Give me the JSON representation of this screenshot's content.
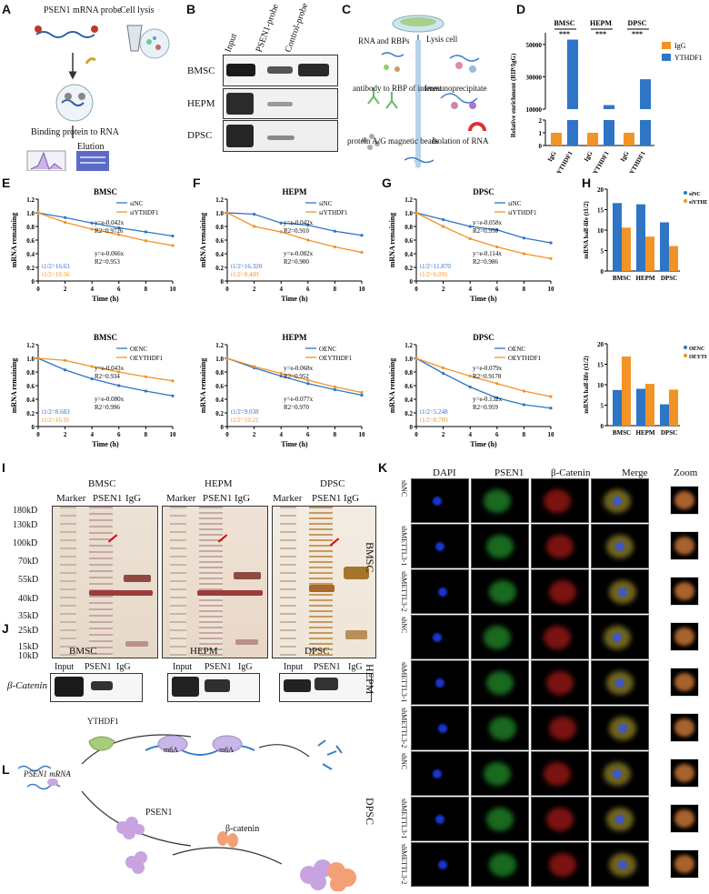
{
  "panels": {
    "A": {
      "label": "A",
      "probe": "PSEN1 mRNA probe",
      "lysis": "Cell lysis",
      "binding": "Binding protein to RNA",
      "elution": "Elution"
    },
    "B": {
      "label": "B",
      "cols": [
        "Input",
        "PSEN1-probe",
        "Control-probe"
      ],
      "rows": [
        "BMSC",
        "HEPM",
        "DPSC"
      ]
    },
    "C": {
      "label": "C",
      "steps": [
        "RNA and RBPs",
        "Lysis cell",
        "antibody to RBP of interest",
        "Immunoprecipitate",
        "protein A/G magnetic beads",
        "Isolation of RNA"
      ]
    },
    "D": {
      "label": "D",
      "ylabel": "Relative enrichment (RIP/IgG)",
      "groups": [
        "BMSC",
        "HEPM",
        "DPSC"
      ],
      "sig": "***",
      "legend": [
        "IgG",
        "YTHDF1"
      ],
      "xticks": [
        "IgG",
        "YTHDF1",
        "IgG",
        "YTHDF1",
        "IgG",
        "YTHDF1"
      ],
      "yticks": [
        "0",
        "1",
        "2",
        "10000",
        "30000",
        "50000"
      ]
    },
    "E": {
      "label": "E"
    },
    "F": {
      "label": "F"
    },
    "G": {
      "label": "G"
    },
    "H": {
      "label": "H"
    },
    "I": {
      "label": "I",
      "groups": [
        "BMSC",
        "HEPM",
        "DPSC"
      ],
      "lanes": [
        "Marker",
        "PSEN1",
        "IgG"
      ],
      "markers": [
        "180kD",
        "130kD",
        "100kD",
        "70kD",
        "55kD",
        "40kD",
        "35kD",
        "25kD",
        "15kD",
        "10kD"
      ]
    },
    "J": {
      "label": "J",
      "groups": [
        "BMSC",
        "HEPM",
        "DPSC"
      ],
      "lanes": [
        "Input",
        "PSEN1",
        "IgG"
      ],
      "row": "β-Catenin"
    },
    "K": {
      "label": "K",
      "cols": [
        "DAPI",
        "PSEN1",
        "β-Catenin",
        "Merge",
        "Zoom"
      ],
      "groups": [
        "BMSC",
        "HEPM",
        "DPSC"
      ],
      "rows": [
        "shNC",
        "shMETTL3-1",
        "shMETTL3-2"
      ]
    },
    "L": {
      "label": "L",
      "mrna": "PSEN1 mRNA",
      "ythdf1": "YTHDF1",
      "m6a": "m6A",
      "psen1": "PSEN1",
      "bcat": "β-catenin"
    }
  },
  "decay_axes": {
    "ylabel": "mRNA remaining",
    "xlabel": "Time (h)",
    "xticks": [
      "0",
      "2",
      "4",
      "6",
      "8",
      "10"
    ],
    "yticks": [
      "0",
      "0.2",
      "0.4",
      "0.6",
      "0.8",
      "1.0",
      "1.2"
    ]
  },
  "halflife_axes": {
    "ylabel": "mRNA half-life (t1/2)",
    "cats": [
      "BMSC",
      "HEPM",
      "DPSC"
    ]
  },
  "colors": {
    "blue": "#2e75c6",
    "orange": "#f29325"
  },
  "chart_data": [
    {
      "id": "D",
      "type": "bar",
      "title": "",
      "ylabel": "Relative enrichment (RIP/IgG)",
      "categories": [
        "BMSC",
        "HEPM",
        "DPSC"
      ],
      "series": [
        {
          "name": "IgG",
          "values": [
            1,
            1,
            1
          ]
        },
        {
          "name": "YTHDF1",
          "values": [
            53000,
            12500,
            28500
          ]
        }
      ]
    },
    {
      "id": "E1",
      "type": "line",
      "title": "BMSC",
      "xlabel": "Time (h)",
      "ylabel": "mRNA remaining",
      "x": [
        0,
        2,
        4,
        6,
        8,
        10
      ],
      "ylim": [
        0,
        1.2
      ],
      "series": [
        {
          "name": "siNC",
          "values": [
            1.0,
            0.93,
            0.85,
            0.78,
            0.72,
            0.66
          ]
        },
        {
          "name": "siYTHDF1",
          "values": [
            1.0,
            0.86,
            0.76,
            0.68,
            0.59,
            0.52
          ]
        }
      ],
      "annotations": [
        "y=e-0.042x",
        "R2=0.9726",
        "y=e-0.066x",
        "R2=0.953",
        "t1/2=16.63",
        "t1/2=10.56"
      ]
    },
    {
      "id": "F1",
      "type": "line",
      "title": "HEPM",
      "xlabel": "Time (h)",
      "ylabel": "mRNA remaining",
      "x": [
        0,
        2,
        4,
        6,
        8,
        10
      ],
      "ylim": [
        0,
        1.2
      ],
      "series": [
        {
          "name": "siNC",
          "values": [
            1.0,
            0.98,
            0.85,
            0.82,
            0.73,
            0.67
          ]
        },
        {
          "name": "siYTHDF1",
          "values": [
            1.0,
            0.8,
            0.72,
            0.6,
            0.5,
            0.42
          ]
        }
      ],
      "annotations": [
        "y=e-0.042x",
        "R2=0.910",
        "y=e-0.082x",
        "R2=0.900",
        "t1/2=16.320",
        "t1/2=8.409"
      ]
    },
    {
      "id": "G1",
      "type": "line",
      "title": "DPSC",
      "xlabel": "Time (h)",
      "ylabel": "mRNA remaining",
      "x": [
        0,
        2,
        4,
        6,
        8,
        10
      ],
      "ylim": [
        0,
        1.2
      ],
      "series": [
        {
          "name": "siNC",
          "values": [
            1.0,
            0.9,
            0.8,
            0.75,
            0.63,
            0.56
          ]
        },
        {
          "name": "siYTHDF1",
          "values": [
            1.0,
            0.8,
            0.62,
            0.5,
            0.4,
            0.33
          ]
        }
      ],
      "annotations": [
        "y=e-0.058x",
        "R2=0.950",
        "y=e-0.114x",
        "R2=0.986",
        "t1/2=11.870",
        "t1/2=6.091"
      ]
    },
    {
      "id": "H1",
      "type": "bar",
      "title": "",
      "ylabel": "mRNA half-life (t1/2)",
      "categories": [
        "BMSC",
        "HEPM",
        "DPSC"
      ],
      "ylim": [
        0,
        20
      ],
      "series": [
        {
          "name": "siNC",
          "values": [
            16.6,
            16.3,
            11.9
          ]
        },
        {
          "name": "siYTHDF1",
          "values": [
            10.6,
            8.4,
            6.1
          ]
        }
      ]
    },
    {
      "id": "E2",
      "type": "line",
      "title": "BMSC",
      "xlabel": "Time (h)",
      "ylabel": "mRNA remaining",
      "x": [
        0,
        2,
        4,
        6,
        8,
        10
      ],
      "ylim": [
        0,
        1.2
      ],
      "series": [
        {
          "name": "OENC",
          "values": [
            1.0,
            0.83,
            0.7,
            0.6,
            0.52,
            0.45
          ]
        },
        {
          "name": "OEYTHDF1",
          "values": [
            1.0,
            0.97,
            0.88,
            0.8,
            0.73,
            0.67
          ]
        }
      ],
      "annotations": [
        "y=e-0.043x",
        "R2=0.934",
        "y=e-0.080x",
        "R2=0.996",
        "t1/2=8.683",
        "t1/2=16.91"
      ]
    },
    {
      "id": "F2",
      "type": "line",
      "title": "HEPM",
      "xlabel": "Time (h)",
      "ylabel": "mRNA remaining",
      "x": [
        0,
        2,
        4,
        6,
        8,
        10
      ],
      "ylim": [
        0,
        1.2
      ],
      "series": [
        {
          "name": "OENC",
          "values": [
            1.0,
            0.86,
            0.74,
            0.63,
            0.54,
            0.46
          ]
        },
        {
          "name": "OEYTHDF1",
          "values": [
            1.0,
            0.88,
            0.78,
            0.68,
            0.58,
            0.5
          ]
        }
      ],
      "annotations": [
        "y=e-0.068x",
        "R2=0.952",
        "y=e-0.077x",
        "R2=0.970",
        "t1/2=9.038",
        "t1/2=10.21"
      ]
    },
    {
      "id": "G2",
      "type": "line",
      "title": "DPSC",
      "xlabel": "Time (h)",
      "ylabel": "mRNA remaining",
      "x": [
        0,
        2,
        4,
        6,
        8,
        10
      ],
      "ylim": [
        0,
        1.2
      ],
      "series": [
        {
          "name": "OENC",
          "values": [
            1.0,
            0.78,
            0.58,
            0.42,
            0.32,
            0.27
          ]
        },
        {
          "name": "OEYTHDF1",
          "values": [
            1.0,
            0.86,
            0.74,
            0.63,
            0.52,
            0.44
          ]
        }
      ],
      "annotations": [
        "y=e-0.079x",
        "R2=0.9178",
        "y=e-0.132x",
        "R2=0.959",
        "t1/2=5.248",
        "t1/2=8.789"
      ]
    },
    {
      "id": "H2",
      "type": "bar",
      "title": "",
      "ylabel": "mRNA half-life (t1/2)",
      "categories": [
        "BMSC",
        "HEPM",
        "DPSC"
      ],
      "ylim": [
        0,
        20
      ],
      "series": [
        {
          "name": "OENC",
          "values": [
            8.7,
            9.0,
            5.2
          ]
        },
        {
          "name": "OEYTHDF1",
          "values": [
            16.9,
            10.2,
            8.8
          ]
        }
      ]
    }
  ]
}
